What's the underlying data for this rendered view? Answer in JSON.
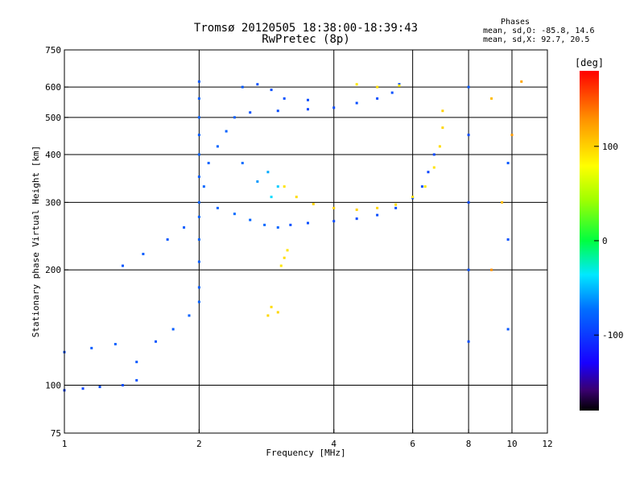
{
  "title": {
    "line1": "Tromsø 20120505 18:38:00-18:39:43",
    "line2": "RwPretec (8p)"
  },
  "phases_box": {
    "title": "Phases",
    "line1": "mean, sd,O: -85.8, 14.6",
    "line2": "mean, sd,X:  92.7, 20.5"
  },
  "colorbar": {
    "label": "[deg]",
    "ticks": [
      {
        "label": "100",
        "value": 100
      },
      {
        "label": "0",
        "value": 0
      },
      {
        "label": "-100",
        "value": -100
      }
    ],
    "range": [
      -180,
      180
    ]
  },
  "chart_data": {
    "type": "scatter",
    "xlabel": "Frequency [MHz]",
    "ylabel": "Stationary phase Virtual Height [km]",
    "xscale": "log",
    "yscale": "log",
    "xlim": [
      1,
      12
    ],
    "ylim": [
      75,
      750
    ],
    "xticks": [
      {
        "label": "1",
        "value": 1
      },
      {
        "label": "2",
        "value": 2
      },
      {
        "label": "4",
        "value": 4
      },
      {
        "label": "6",
        "value": 6
      },
      {
        "label": "8",
        "value": 8
      },
      {
        "label": "10",
        "value": 10
      },
      {
        "label": "12",
        "value": 12
      }
    ],
    "yticks": [
      {
        "label": "75",
        "value": 75
      },
      {
        "label": "100",
        "value": 100
      },
      {
        "label": "200",
        "value": 200
      },
      {
        "label": "300",
        "value": 300
      },
      {
        "label": "400",
        "value": 400
      },
      {
        "label": "500",
        "value": 500
      },
      {
        "label": "600",
        "value": 600
      },
      {
        "label": "750",
        "value": 750
      }
    ],
    "grid_x": [
      2,
      4,
      6,
      8,
      10
    ],
    "grid_y": [
      100,
      200,
      300,
      400,
      500,
      600
    ],
    "color_encoding": "phase [deg]",
    "series": [
      {
        "mode": "O",
        "points": [
          [
            1.0,
            97,
            -95
          ],
          [
            1.1,
            98,
            -95
          ],
          [
            1.2,
            99,
            -92
          ],
          [
            1.35,
            100,
            -90
          ],
          [
            1.45,
            103,
            -88
          ],
          [
            1.0,
            122,
            -85
          ],
          [
            1.15,
            125,
            -82
          ],
          [
            1.3,
            128,
            -80
          ],
          [
            1.45,
            115,
            -85
          ],
          [
            1.6,
            130,
            -85
          ],
          [
            1.75,
            140,
            -82
          ],
          [
            1.9,
            152,
            -80
          ],
          [
            2.0,
            165,
            -80
          ],
          [
            1.35,
            205,
            -85
          ],
          [
            1.5,
            220,
            -82
          ],
          [
            1.7,
            240,
            -85
          ],
          [
            1.85,
            258,
            -82
          ],
          [
            2.0,
            275,
            -80
          ],
          [
            2.2,
            290,
            -78
          ],
          [
            2.4,
            280,
            -75
          ],
          [
            2.6,
            270,
            -78
          ],
          [
            2.8,
            262,
            -75
          ],
          [
            3.0,
            258,
            -78
          ],
          [
            3.2,
            262,
            -88
          ],
          [
            3.5,
            265,
            -90
          ],
          [
            4.0,
            268,
            -92
          ],
          [
            4.5,
            272,
            -92
          ],
          [
            5.0,
            278,
            -90
          ],
          [
            5.5,
            290,
            -88
          ],
          [
            6.0,
            308,
            -88
          ],
          [
            6.3,
            330,
            -90
          ],
          [
            6.5,
            360,
            -95
          ],
          [
            6.7,
            400,
            -92
          ],
          [
            2.0,
            180,
            -82
          ],
          [
            2.0,
            210,
            -82
          ],
          [
            2.0,
            240,
            -80
          ],
          [
            2.0,
            300,
            -80
          ],
          [
            2.0,
            350,
            -82
          ],
          [
            2.0,
            400,
            -80
          ],
          [
            2.0,
            450,
            -82
          ],
          [
            2.0,
            500,
            -80
          ],
          [
            2.0,
            560,
            -82
          ],
          [
            2.0,
            620,
            -85
          ],
          [
            2.05,
            330,
            -78
          ],
          [
            2.1,
            380,
            -80
          ],
          [
            2.2,
            420,
            -78
          ],
          [
            2.3,
            460,
            -80
          ],
          [
            2.4,
            500,
            -82
          ],
          [
            2.6,
            515,
            -88
          ],
          [
            3.0,
            520,
            -90
          ],
          [
            3.5,
            525,
            -92
          ],
          [
            4.0,
            530,
            -92
          ],
          [
            4.5,
            545,
            -90
          ],
          [
            5.0,
            560,
            -90
          ],
          [
            5.4,
            580,
            -88
          ],
          [
            5.6,
            610,
            -90
          ],
          [
            2.5,
            600,
            -85
          ],
          [
            2.7,
            610,
            -88
          ],
          [
            2.9,
            590,
            -90
          ],
          [
            3.1,
            560,
            -88
          ],
          [
            3.5,
            555,
            -90
          ],
          [
            2.5,
            380,
            -75
          ],
          [
            2.7,
            340,
            -60
          ],
          [
            2.9,
            310,
            -40
          ],
          [
            2.85,
            360,
            -55
          ],
          [
            3.0,
            330,
            -45
          ],
          [
            8.0,
            130,
            -90
          ],
          [
            8.0,
            200,
            -88
          ],
          [
            8.0,
            300,
            -92
          ],
          [
            8.0,
            450,
            -90
          ],
          [
            8.0,
            600,
            -85
          ],
          [
            9.8,
            140,
            -85
          ],
          [
            9.8,
            240,
            -88
          ],
          [
            9.8,
            380,
            -85
          ]
        ]
      },
      {
        "mode": "X",
        "points": [
          [
            2.85,
            152,
            98
          ],
          [
            2.9,
            160,
            95
          ],
          [
            3.0,
            155,
            98
          ],
          [
            3.05,
            205,
            90
          ],
          [
            3.1,
            215,
            95
          ],
          [
            3.15,
            225,
            92
          ],
          [
            3.1,
            330,
            92
          ],
          [
            3.3,
            310,
            95
          ],
          [
            3.6,
            297,
            98
          ],
          [
            4.0,
            290,
            100
          ],
          [
            4.5,
            287,
            100
          ],
          [
            5.0,
            290,
            98
          ],
          [
            5.5,
            296,
            95
          ],
          [
            6.0,
            310,
            92
          ],
          [
            6.4,
            330,
            90
          ],
          [
            6.7,
            370,
            92
          ],
          [
            6.9,
            420,
            95
          ],
          [
            7.0,
            470,
            98
          ],
          [
            7.0,
            520,
            100
          ],
          [
            4.5,
            610,
            90
          ],
          [
            5.0,
            600,
            95
          ],
          [
            5.6,
            605,
            92
          ],
          [
            9.0,
            560,
            110
          ],
          [
            9.0,
            200,
            130
          ],
          [
            9.5,
            300,
            110
          ],
          [
            10.0,
            450,
            125
          ],
          [
            10.5,
            620,
            120
          ]
        ]
      }
    ]
  }
}
